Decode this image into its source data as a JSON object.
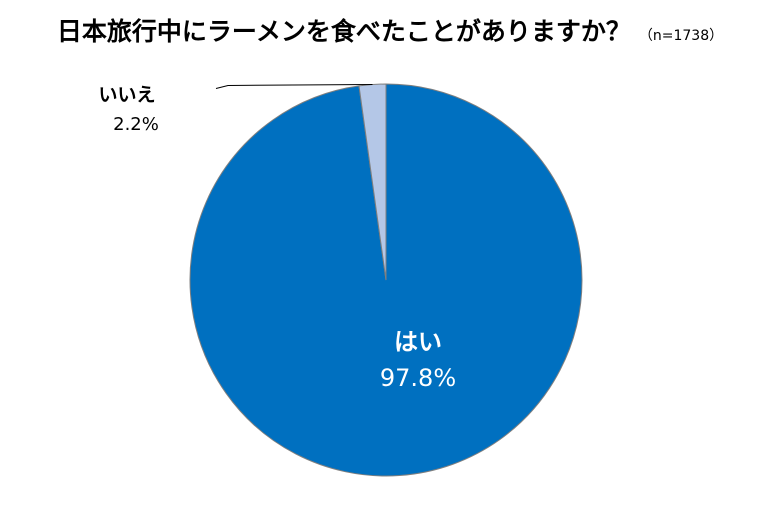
{
  "chart_data": {
    "type": "pie",
    "title": "日本旅行中にラーメンを食べたことがありますか？",
    "subtitle": "（n=1738）",
    "categories": [
      "はい",
      "いいえ"
    ],
    "values": [
      97.8,
      2.2
    ],
    "value_labels": [
      "97.8%",
      "2.2%"
    ],
    "colors": [
      "#0070C0",
      "#B4C7E7"
    ],
    "start": "12 o'clock",
    "direction": "clockwise",
    "legend": "none",
    "label_placement": [
      "inside",
      "outside-left-with-leader"
    ]
  }
}
